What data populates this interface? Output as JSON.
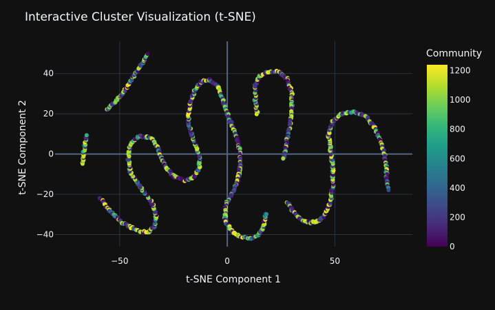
{
  "chart_data": {
    "type": "scatter",
    "title": "Interactive Cluster Visualization (t-SNE)",
    "xlabel": "t-SNE Component 1",
    "ylabel": "t-SNE Component 2",
    "xlim": [
      -80,
      86
    ],
    "ylim": [
      -46,
      56
    ],
    "x_ticks": [
      -50,
      0,
      50
    ],
    "x_tick_labels": [
      "−50",
      "0",
      "50"
    ],
    "y_ticks": [
      -40,
      -20,
      0,
      20,
      40
    ],
    "y_tick_labels": [
      "−40",
      "−20",
      "0",
      "20",
      "40"
    ],
    "grid": true,
    "colorbar": {
      "title": "Community",
      "range": [
        0,
        1240
      ],
      "ticks": [
        0,
        200,
        400,
        600,
        800,
        1000,
        1200
      ],
      "tick_labels": [
        "0",
        "200",
        "400",
        "600",
        "800",
        "1000",
        "1200"
      ],
      "colorscale": "viridis"
    },
    "curves": [
      {
        "points": [
          [
            -56,
            22
          ],
          [
            -52,
            26
          ],
          [
            -48,
            31
          ],
          [
            -45,
            36
          ],
          [
            -42,
            41
          ],
          [
            -39,
            46
          ],
          [
            -37,
            50
          ]
        ]
      },
      {
        "points": [
          [
            -67,
            -5
          ],
          [
            -67,
            0
          ],
          [
            -66,
            5
          ],
          [
            -65,
            10
          ]
        ]
      },
      {
        "points": [
          [
            -59,
            -22
          ],
          [
            -55,
            -28
          ],
          [
            -49,
            -34
          ],
          [
            -42,
            -38
          ],
          [
            -37,
            -39
          ],
          [
            -34,
            -36
          ],
          [
            -33,
            -30
          ],
          [
            -35,
            -24
          ],
          [
            -40,
            -17
          ],
          [
            -45,
            -9
          ],
          [
            -46,
            -2
          ],
          [
            -45,
            5
          ],
          [
            -41,
            9
          ],
          [
            -35,
            8
          ],
          [
            -32,
            2
          ],
          [
            -29,
            -6
          ],
          [
            -25,
            -11
          ],
          [
            -20,
            -13
          ],
          [
            -16,
            -12
          ],
          [
            -13,
            -7
          ],
          [
            -13,
            -1
          ],
          [
            -15,
            5
          ],
          [
            -17,
            11
          ],
          [
            -18,
            16
          ],
          [
            -18,
            21
          ],
          [
            -17,
            26
          ],
          [
            -15,
            32
          ],
          [
            -12,
            36
          ],
          [
            -8,
            37
          ],
          [
            -4,
            33
          ],
          [
            -2,
            27
          ],
          [
            0,
            20
          ],
          [
            3,
            12
          ],
          [
            5,
            6
          ],
          [
            6,
            0
          ],
          [
            6,
            -7
          ],
          [
            5,
            -13
          ],
          [
            2,
            -20
          ],
          [
            -1,
            -26
          ],
          [
            -1,
            -33
          ],
          [
            2,
            -38
          ],
          [
            6,
            -41
          ],
          [
            11,
            -42
          ],
          [
            15,
            -40
          ],
          [
            17,
            -35
          ],
          [
            18,
            -29
          ]
        ]
      },
      {
        "points": [
          [
            14,
            20
          ],
          [
            13,
            27
          ],
          [
            13,
            34
          ],
          [
            15,
            39
          ],
          [
            19,
            41
          ],
          [
            24,
            41
          ],
          [
            28,
            37
          ],
          [
            30,
            30
          ],
          [
            30,
            22
          ],
          [
            29,
            14
          ],
          [
            28,
            8
          ],
          [
            27,
            2
          ],
          [
            26,
            -3
          ]
        ]
      },
      {
        "points": [
          [
            28,
            -24
          ],
          [
            31,
            -29
          ],
          [
            35,
            -33
          ],
          [
            39,
            -34
          ],
          [
            43,
            -33
          ],
          [
            46,
            -29
          ],
          [
            48,
            -23
          ],
          [
            49,
            -15
          ],
          [
            49,
            -7
          ],
          [
            48,
            2
          ],
          [
            47,
            10
          ],
          [
            49,
            16
          ],
          [
            53,
            20
          ],
          [
            59,
            21
          ],
          [
            64,
            19
          ],
          [
            68,
            14
          ],
          [
            71,
            7
          ],
          [
            73,
            0
          ],
          [
            74,
            -6
          ],
          [
            74,
            -12
          ],
          [
            75,
            -18
          ]
        ]
      }
    ]
  }
}
